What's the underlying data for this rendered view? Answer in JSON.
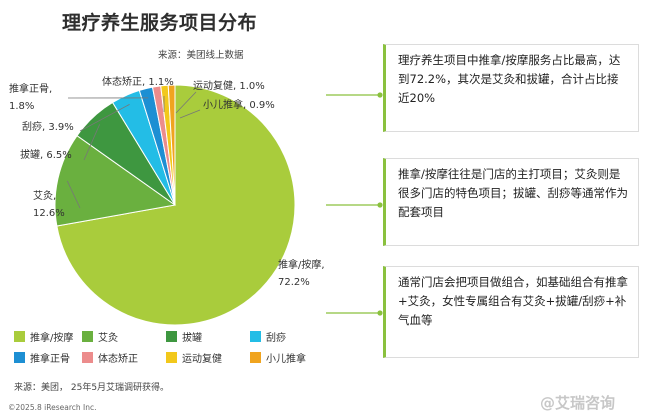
{
  "title": "理疗养生服务项目分布",
  "subtitle": "来源：美团线上数据",
  "source": "来源：美团，  25年5月艾瑞调研获得。",
  "copyright": "©2025.8 iResearch Inc.",
  "watermark": "@艾瑞咨询",
  "colors": {
    "accent": "#8ac13e",
    "series": [
      "#a9cc3c",
      "#6ab03f",
      "#3e9740",
      "#23bde6",
      "#1d8fd3",
      "#ec8c8c",
      "#f2c81b",
      "#f0a41f"
    ]
  },
  "callouts": [
    {
      "text": "理疗养生项目中推拿/按摩服务占比最高，达到72.2%，其次是艾灸和拔罐，合计占比接近20%"
    },
    {
      "text": "推拿/按摩往往是门店的主打项目；艾灸则是很多门店的特色项目；拔罐、刮痧等通常作为配套项目"
    },
    {
      "text": "通常门店会把项目做组合，如基础组合有推拿+艾灸，女性专属组合有艾灸+拔罐/刮痧+补气血等"
    }
  ],
  "chart_data": {
    "type": "pie",
    "title": "理疗养生服务项目分布",
    "subtitle": "来源：美团线上数据",
    "legend_position": "bottom",
    "slices": [
      {
        "label": "推拿/按摩",
        "value": 72.2,
        "display": "推拿/按摩,\n72.2%"
      },
      {
        "label": "艾灸",
        "value": 12.6,
        "display": "艾灸,\n12.6%"
      },
      {
        "label": "拔罐",
        "value": 6.5,
        "display": "拔罐, 6.5%"
      },
      {
        "label": "刮痧",
        "value": 3.9,
        "display": "刮痧, 3.9%"
      },
      {
        "label": "推拿正骨",
        "value": 1.8,
        "display": "推拿正骨,\n1.8%"
      },
      {
        "label": "体态矫正",
        "value": 1.1,
        "display": "体态矫正, 1.1%"
      },
      {
        "label": "运动复健",
        "value": 1.0,
        "display": "运动复健, 1.0%"
      },
      {
        "label": "小儿推拿",
        "value": 0.9,
        "display": "小儿推拿, 0.9%"
      }
    ]
  }
}
